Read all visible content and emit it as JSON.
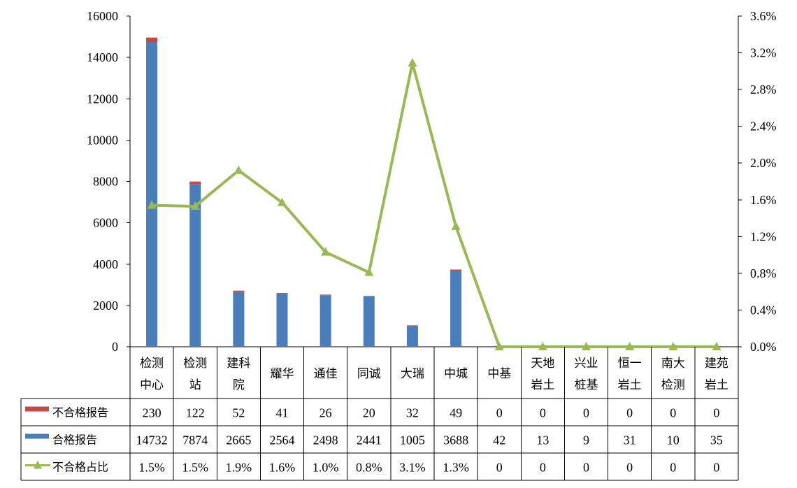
{
  "chart_data": {
    "type": "bar",
    "stacked": true,
    "categories": [
      [
        "检测",
        "中心"
      ],
      [
        "检测",
        "站"
      ],
      [
        "建科",
        "院"
      ],
      [
        "耀华"
      ],
      [
        "通佳"
      ],
      [
        "同诚"
      ],
      [
        "大瑞"
      ],
      [
        "中城"
      ],
      [
        "中基"
      ],
      [
        "天地",
        "岩土"
      ],
      [
        "兴业",
        "桩基"
      ],
      [
        "恒一",
        "岩土"
      ],
      [
        "南大",
        "检测"
      ],
      [
        "建苑",
        "岩土"
      ]
    ],
    "series": [
      {
        "name": "合格报告",
        "kind": "bar",
        "axis": "left",
        "color": "#4a7ebb",
        "values": [
          14732,
          7874,
          2665,
          2564,
          2498,
          2441,
          1005,
          3688,
          42,
          13,
          9,
          31,
          10,
          35
        ],
        "labels": [
          "14732",
          "7874",
          "2665",
          "2564",
          "2498",
          "2441",
          "1005",
          "3688",
          "42",
          "13",
          "9",
          "31",
          "10",
          "35"
        ]
      },
      {
        "name": "不合格报告",
        "kind": "bar",
        "axis": "left",
        "color": "#be4b48",
        "values": [
          230,
          122,
          52,
          41,
          26,
          20,
          32,
          49,
          0,
          0,
          0,
          0,
          0,
          0
        ],
        "labels": [
          "230",
          "122",
          "52",
          "41",
          "26",
          "20",
          "32",
          "49",
          "0",
          "0",
          "0",
          "0",
          "0",
          "0"
        ]
      },
      {
        "name": "不合格占比",
        "kind": "line",
        "axis": "right",
        "color": "#98b954",
        "values": [
          1.54,
          1.53,
          1.92,
          1.57,
          1.03,
          0.81,
          3.09,
          1.31,
          0,
          0,
          0,
          0,
          0,
          0
        ],
        "labels": [
          "1.5%",
          "1.5%",
          "1.9%",
          "1.6%",
          "1.0%",
          "0.8%",
          "3.1%",
          "1.3%",
          "0",
          "0",
          "0",
          "0",
          "0",
          "0"
        ]
      }
    ],
    "table_order": [
      1,
      0,
      2
    ],
    "y_left": {
      "min": 0,
      "max": 16000,
      "ticks": [
        "0",
        "2000",
        "4000",
        "6000",
        "8000",
        "10000",
        "12000",
        "14000",
        "16000"
      ]
    },
    "y_right": {
      "min": 0,
      "max": 3.6,
      "ticks": [
        "0.0%",
        "0.4%",
        "0.8%",
        "1.2%",
        "1.6%",
        "2.0%",
        "2.4%",
        "2.8%",
        "3.2%",
        "3.6%"
      ]
    },
    "grid": false,
    "legend": "data-table-left"
  }
}
